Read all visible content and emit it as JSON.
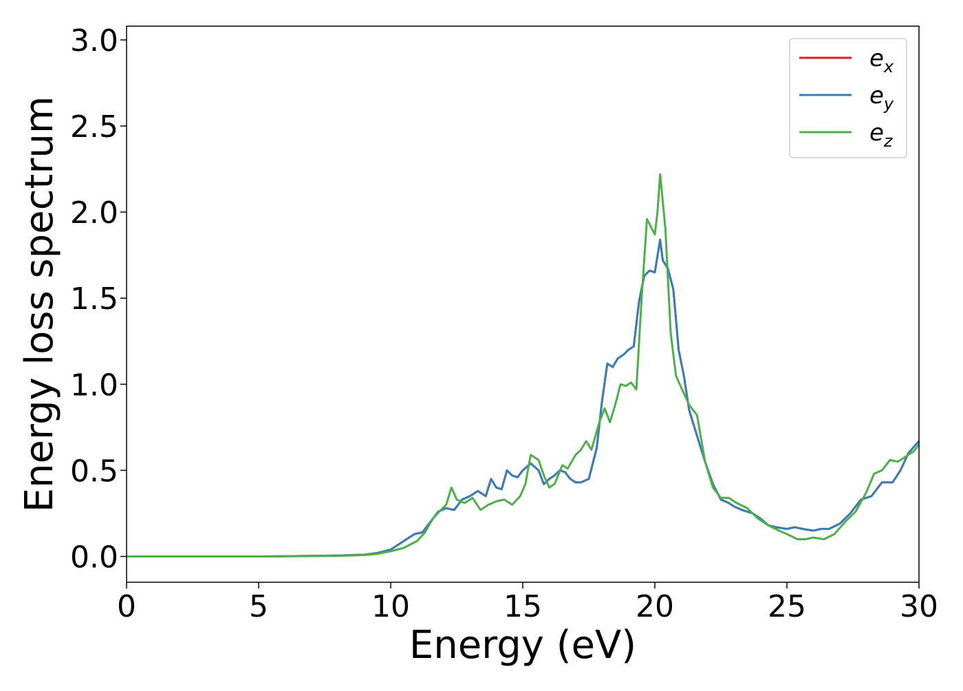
{
  "chart_data": {
    "type": "line",
    "title": "",
    "xlabel": "Energy (eV)",
    "ylabel": "Energy loss spectrum",
    "xlim": [
      0,
      30
    ],
    "ylim": [
      -0.15,
      3.08
    ],
    "xticks": [
      0,
      5,
      10,
      15,
      20,
      25,
      30
    ],
    "xtick_labels": [
      "0",
      "5",
      "10",
      "15",
      "20",
      "25",
      "30"
    ],
    "yticks": [
      0.0,
      0.5,
      1.0,
      1.5,
      2.0,
      2.5,
      3.0
    ],
    "ytick_labels": [
      "0.0",
      "0.5",
      "1.0",
      "1.5",
      "2.0",
      "2.5",
      "3.0"
    ],
    "grid": false,
    "legend_position": "top-right",
    "series": [
      {
        "name": "e_x",
        "label_base": "e",
        "label_sub": "x",
        "color": "#e41a1c",
        "x": [
          0,
          5,
          8,
          9,
          9.5,
          10,
          10.3,
          10.6,
          10.9,
          11.2,
          11.5,
          11.8,
          12.1,
          12.4,
          12.7,
          13.0,
          13.3,
          13.6,
          13.8,
          14.0,
          14.2,
          14.4,
          14.6,
          14.8,
          15.0,
          15.3,
          15.6,
          15.8,
          16.0,
          16.2,
          16.4,
          16.6,
          16.8,
          17.0,
          17.2,
          17.5,
          17.8,
          18.0,
          18.2,
          18.4,
          18.6,
          18.8,
          19.0,
          19.2,
          19.4,
          19.6,
          19.8,
          20.0,
          20.2,
          20.3,
          20.5,
          20.7,
          20.9,
          21.1,
          21.3,
          21.6,
          21.9,
          22.2,
          22.5,
          22.8,
          23.0,
          23.3,
          23.7,
          24.0,
          24.3,
          24.6,
          25.0,
          25.3,
          25.6,
          26.0,
          26.3,
          26.6,
          27.0,
          27.4,
          27.8,
          28.2,
          28.6,
          29.0,
          29.3,
          29.6,
          30.0
        ],
        "y": [
          0.0,
          0.0,
          0.005,
          0.01,
          0.02,
          0.04,
          0.07,
          0.1,
          0.13,
          0.14,
          0.2,
          0.26,
          0.28,
          0.27,
          0.33,
          0.35,
          0.38,
          0.35,
          0.45,
          0.4,
          0.39,
          0.5,
          0.47,
          0.46,
          0.5,
          0.54,
          0.5,
          0.42,
          0.45,
          0.47,
          0.5,
          0.49,
          0.45,
          0.43,
          0.43,
          0.45,
          0.63,
          0.9,
          1.12,
          1.1,
          1.15,
          1.17,
          1.2,
          1.22,
          1.48,
          1.63,
          1.66,
          1.65,
          1.84,
          1.72,
          1.67,
          1.55,
          1.2,
          1.05,
          0.85,
          0.7,
          0.55,
          0.42,
          0.33,
          0.31,
          0.29,
          0.27,
          0.25,
          0.22,
          0.18,
          0.17,
          0.16,
          0.17,
          0.16,
          0.15,
          0.16,
          0.16,
          0.19,
          0.25,
          0.33,
          0.35,
          0.43,
          0.43,
          0.5,
          0.6,
          0.67
        ]
      },
      {
        "name": "e_y",
        "label_base": "e",
        "label_sub": "y",
        "color": "#377eb8",
        "x": [
          0,
          5,
          8,
          9,
          9.5,
          10,
          10.3,
          10.6,
          10.9,
          11.2,
          11.5,
          11.8,
          12.1,
          12.4,
          12.7,
          13.0,
          13.3,
          13.6,
          13.8,
          14.0,
          14.2,
          14.4,
          14.6,
          14.8,
          15.0,
          15.3,
          15.6,
          15.8,
          16.0,
          16.2,
          16.4,
          16.6,
          16.8,
          17.0,
          17.2,
          17.5,
          17.8,
          18.0,
          18.2,
          18.4,
          18.6,
          18.8,
          19.0,
          19.2,
          19.4,
          19.6,
          19.8,
          20.0,
          20.2,
          20.3,
          20.5,
          20.7,
          20.9,
          21.1,
          21.3,
          21.6,
          21.9,
          22.2,
          22.5,
          22.8,
          23.0,
          23.3,
          23.7,
          24.0,
          24.3,
          24.6,
          25.0,
          25.3,
          25.6,
          26.0,
          26.3,
          26.6,
          27.0,
          27.4,
          27.8,
          28.2,
          28.6,
          29.0,
          29.3,
          29.6,
          30.0
        ],
        "y": [
          0.0,
          0.0,
          0.005,
          0.01,
          0.02,
          0.04,
          0.07,
          0.1,
          0.13,
          0.14,
          0.2,
          0.26,
          0.28,
          0.27,
          0.33,
          0.35,
          0.38,
          0.35,
          0.45,
          0.4,
          0.39,
          0.5,
          0.47,
          0.46,
          0.5,
          0.54,
          0.5,
          0.42,
          0.45,
          0.47,
          0.5,
          0.49,
          0.45,
          0.43,
          0.43,
          0.45,
          0.63,
          0.9,
          1.12,
          1.1,
          1.15,
          1.17,
          1.2,
          1.22,
          1.48,
          1.63,
          1.66,
          1.65,
          1.84,
          1.72,
          1.67,
          1.55,
          1.2,
          1.05,
          0.85,
          0.7,
          0.55,
          0.42,
          0.33,
          0.31,
          0.29,
          0.27,
          0.25,
          0.22,
          0.18,
          0.17,
          0.16,
          0.17,
          0.16,
          0.15,
          0.16,
          0.16,
          0.19,
          0.25,
          0.33,
          0.35,
          0.43,
          0.43,
          0.5,
          0.6,
          0.67
        ]
      },
      {
        "name": "e_z",
        "label_base": "e",
        "label_sub": "z",
        "color": "#4daf4a",
        "x": [
          0,
          5,
          8,
          9,
          9.5,
          10,
          10.5,
          11.0,
          11.3,
          11.6,
          11.9,
          12.1,
          12.3,
          12.5,
          12.8,
          13.1,
          13.4,
          13.7,
          14.0,
          14.3,
          14.6,
          14.9,
          15.1,
          15.3,
          15.6,
          15.8,
          16.0,
          16.2,
          16.5,
          16.7,
          17.0,
          17.2,
          17.4,
          17.6,
          17.9,
          18.1,
          18.3,
          18.5,
          18.7,
          18.9,
          19.1,
          19.3,
          19.5,
          19.7,
          19.9,
          20.0,
          20.1,
          20.2,
          20.4,
          20.6,
          20.8,
          21.0,
          21.3,
          21.6,
          21.9,
          22.2,
          22.5,
          22.8,
          23.1,
          23.5,
          23.9,
          24.3,
          24.7,
          25.0,
          25.4,
          25.7,
          26.0,
          26.4,
          26.8,
          27.2,
          27.6,
          28.0,
          28.3,
          28.6,
          28.9,
          29.2,
          29.5,
          29.8,
          30.0
        ],
        "y": [
          0.0,
          0.0,
          0.003,
          0.008,
          0.015,
          0.03,
          0.05,
          0.09,
          0.14,
          0.22,
          0.27,
          0.3,
          0.4,
          0.33,
          0.31,
          0.34,
          0.27,
          0.3,
          0.32,
          0.33,
          0.3,
          0.35,
          0.42,
          0.59,
          0.56,
          0.47,
          0.4,
          0.42,
          0.53,
          0.51,
          0.59,
          0.62,
          0.67,
          0.62,
          0.78,
          0.86,
          0.78,
          0.88,
          1.0,
          0.99,
          1.01,
          0.97,
          1.5,
          1.96,
          1.9,
          1.87,
          2.0,
          2.22,
          1.9,
          1.3,
          1.05,
          0.98,
          0.88,
          0.82,
          0.55,
          0.4,
          0.34,
          0.34,
          0.31,
          0.28,
          0.22,
          0.18,
          0.15,
          0.13,
          0.1,
          0.1,
          0.11,
          0.1,
          0.13,
          0.2,
          0.26,
          0.37,
          0.48,
          0.5,
          0.56,
          0.55,
          0.58,
          0.61,
          0.65
        ]
      }
    ]
  }
}
